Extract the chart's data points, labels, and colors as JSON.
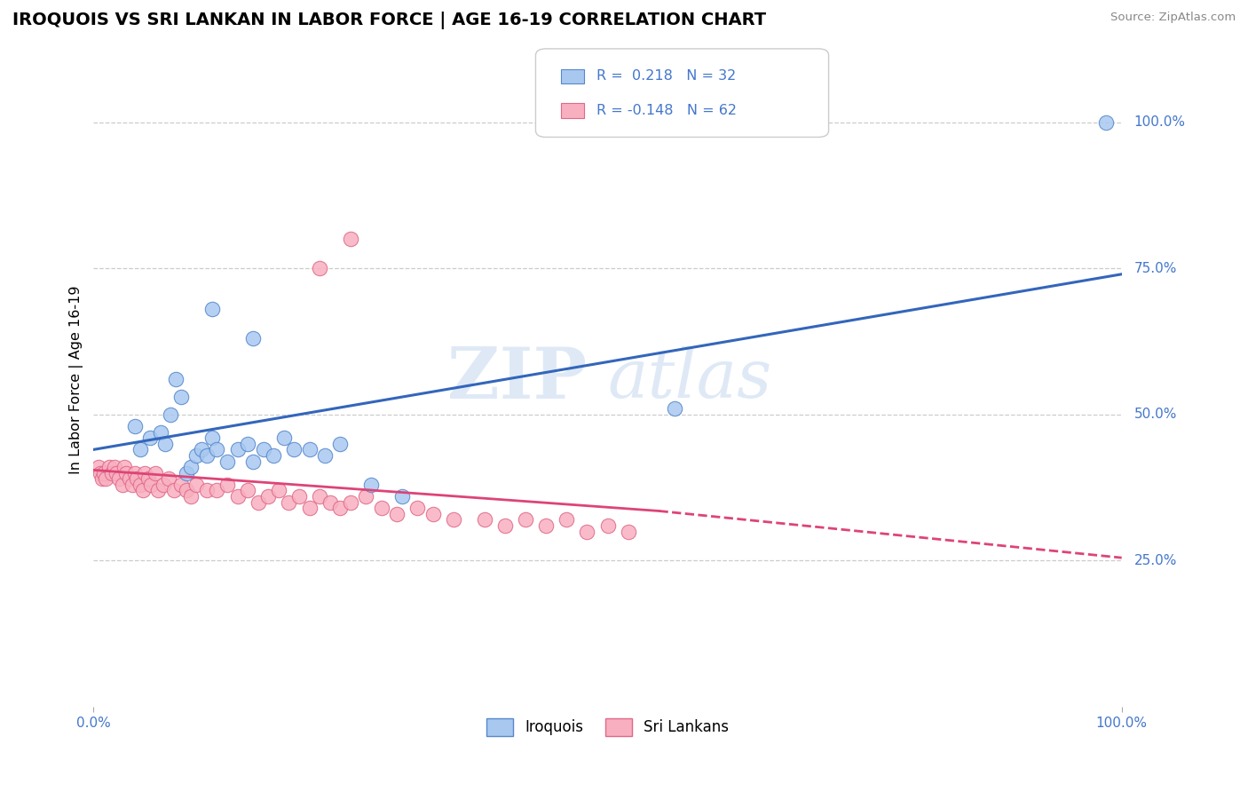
{
  "title": "IROQUOIS VS SRI LANKAN IN LABOR FORCE | AGE 16-19 CORRELATION CHART",
  "source_text": "Source: ZipAtlas.com",
  "ylabel": "In Labor Force | Age 16-19",
  "xlim": [
    0.0,
    1.0
  ],
  "ylim": [
    0.0,
    1.12
  ],
  "grid_color": "#cccccc",
  "background_color": "#ffffff",
  "watermark_zip": "ZIP",
  "watermark_atlas": "atlas",
  "iroquois_color": "#a8c8f0",
  "iroquois_edge_color": "#5588cc",
  "srilankan_color": "#f8b0c0",
  "srilankan_edge_color": "#e06888",
  "R_iroquois": 0.218,
  "N_iroquois": 32,
  "R_srilankan": -0.148,
  "N_srilankan": 62,
  "line_blue_color": "#3366bb",
  "line_pink_color": "#dd4477",
  "label_color": "#4477cc",
  "blue_line_x0": 0.0,
  "blue_line_y0": 0.44,
  "blue_line_x1": 1.0,
  "blue_line_y1": 0.74,
  "pink_line_x0": 0.0,
  "pink_line_y0": 0.405,
  "pink_line_solid_x1": 0.55,
  "pink_line_solid_y1": 0.335,
  "pink_line_dash_x1": 1.0,
  "pink_line_dash_y1": 0.255,
  "iroquois_x": [
    0.115,
    0.155,
    0.04,
    0.045,
    0.055,
    0.065,
    0.07,
    0.075,
    0.08,
    0.085,
    0.09,
    0.095,
    0.1,
    0.105,
    0.11,
    0.115,
    0.12,
    0.13,
    0.14,
    0.15,
    0.155,
    0.165,
    0.175,
    0.185,
    0.195,
    0.21,
    0.225,
    0.24,
    0.27,
    0.3,
    0.565,
    0.985
  ],
  "iroquois_y": [
    0.68,
    0.63,
    0.48,
    0.44,
    0.46,
    0.47,
    0.45,
    0.5,
    0.56,
    0.53,
    0.4,
    0.41,
    0.43,
    0.44,
    0.43,
    0.46,
    0.44,
    0.42,
    0.44,
    0.45,
    0.42,
    0.44,
    0.43,
    0.46,
    0.44,
    0.44,
    0.43,
    0.45,
    0.38,
    0.36,
    0.51,
    1.0
  ],
  "srilankan_x": [
    0.005,
    0.007,
    0.008,
    0.01,
    0.012,
    0.015,
    0.018,
    0.02,
    0.022,
    0.025,
    0.028,
    0.03,
    0.032,
    0.035,
    0.038,
    0.04,
    0.042,
    0.045,
    0.048,
    0.05,
    0.053,
    0.056,
    0.06,
    0.063,
    0.068,
    0.073,
    0.078,
    0.085,
    0.09,
    0.095,
    0.1,
    0.11,
    0.12,
    0.13,
    0.14,
    0.15,
    0.16,
    0.17,
    0.18,
    0.19,
    0.2,
    0.21,
    0.22,
    0.23,
    0.24,
    0.25,
    0.265,
    0.28,
    0.295,
    0.315,
    0.33,
    0.35,
    0.38,
    0.4,
    0.42,
    0.44,
    0.46,
    0.48,
    0.5,
    0.52,
    0.22,
    0.25
  ],
  "srilankan_y": [
    0.41,
    0.4,
    0.39,
    0.4,
    0.39,
    0.41,
    0.4,
    0.41,
    0.4,
    0.39,
    0.38,
    0.41,
    0.4,
    0.39,
    0.38,
    0.4,
    0.39,
    0.38,
    0.37,
    0.4,
    0.39,
    0.38,
    0.4,
    0.37,
    0.38,
    0.39,
    0.37,
    0.38,
    0.37,
    0.36,
    0.38,
    0.37,
    0.37,
    0.38,
    0.36,
    0.37,
    0.35,
    0.36,
    0.37,
    0.35,
    0.36,
    0.34,
    0.36,
    0.35,
    0.34,
    0.35,
    0.36,
    0.34,
    0.33,
    0.34,
    0.33,
    0.32,
    0.32,
    0.31,
    0.32,
    0.31,
    0.32,
    0.3,
    0.31,
    0.3,
    0.75,
    0.8
  ],
  "ytick_positions": [
    0.25,
    0.5,
    0.75,
    1.0
  ],
  "ytick_labels": [
    "25.0%",
    "50.0%",
    "75.0%",
    "100.0%"
  ]
}
